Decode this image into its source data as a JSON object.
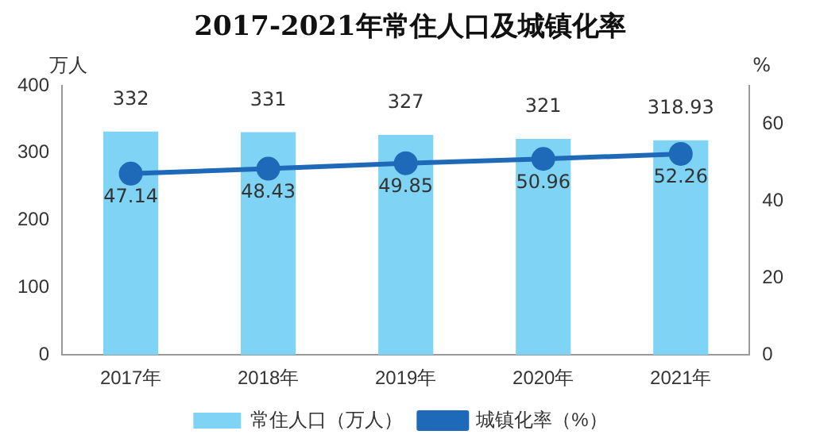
{
  "chart_data": {
    "type": "bar",
    "title": "2017-2021年常住人口及城镇化率",
    "ylabel": "万人",
    "y2label": "%",
    "categories": [
      "2017年",
      "2018年",
      "2019年",
      "2020年",
      "2021年"
    ],
    "series": [
      {
        "name": "常住人口（万人）",
        "color": "#7fd3f4",
        "values": [
          332,
          331,
          327,
          321,
          318.93
        ]
      },
      {
        "name": "城镇化率（%）",
        "type": "line",
        "axis": "y2",
        "color": "#1e6ab8",
        "values": [
          47.14,
          48.43,
          49.85,
          50.96,
          52.26
        ]
      }
    ],
    "ylim": [
      0,
      400
    ],
    "yticks": [
      0,
      100,
      200,
      300,
      400
    ],
    "y2lim": [
      0,
      70
    ],
    "y2ticks": [
      0,
      20,
      40,
      60
    ],
    "grid": false,
    "legend": "bottom",
    "marker": "circle",
    "line_style": "solid",
    "data_labels": true
  }
}
